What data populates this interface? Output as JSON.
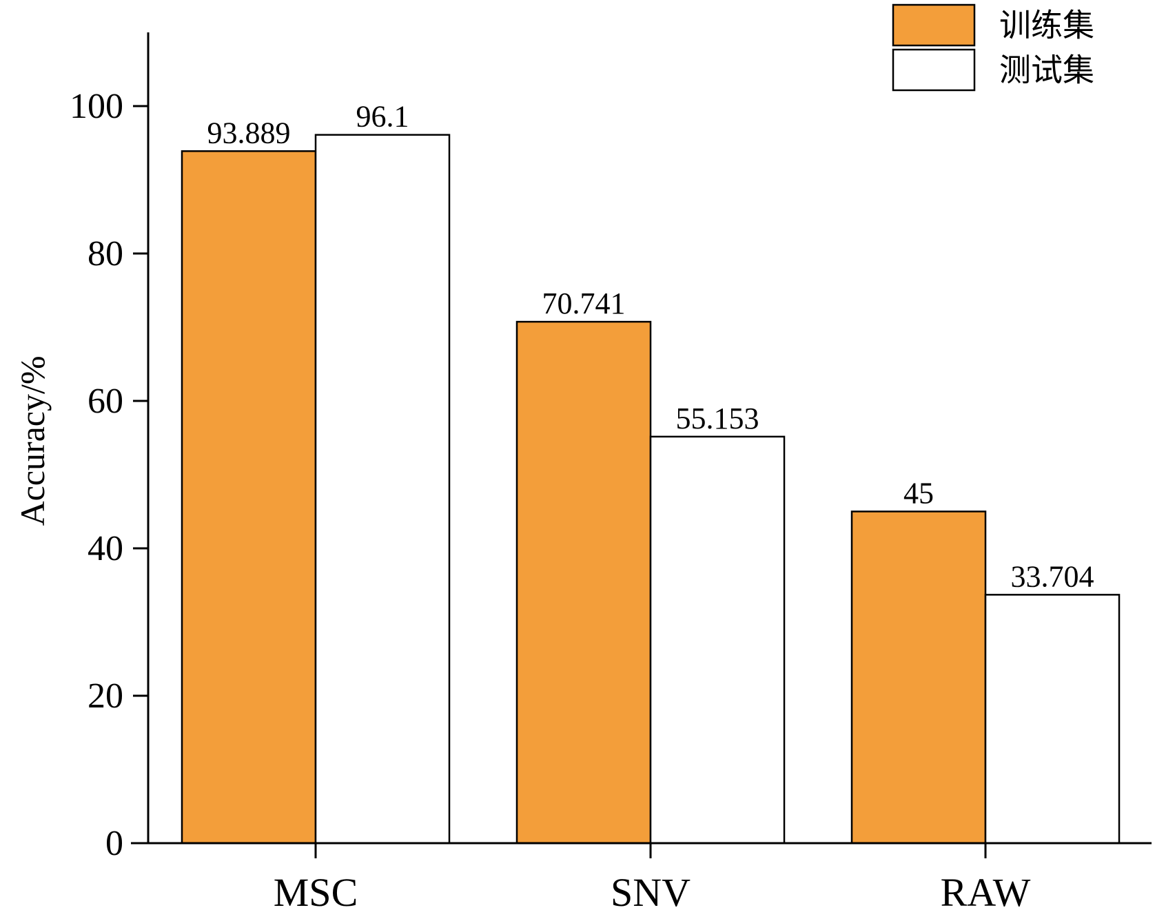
{
  "chart_data": {
    "type": "bar",
    "categories": [
      "MSC",
      "SNV",
      "RAW"
    ],
    "series": [
      {
        "name": "训练集",
        "color": "#F39E3A",
        "values": [
          93.889,
          70.741,
          45
        ]
      },
      {
        "name": "测试集",
        "color": "#FFFFFF",
        "values": [
          96.1,
          55.153,
          33.704
        ]
      }
    ],
    "data_labels": [
      [
        "93.889",
        "70.741",
        "45"
      ],
      [
        "96.1",
        "55.153",
        "33.704"
      ]
    ],
    "ylabel": "Accuracy/%",
    "xlabel": "",
    "ylim": [
      0,
      110
    ],
    "yticks": [
      0,
      20,
      40,
      60,
      80,
      100
    ],
    "grid": false,
    "legend_position": "top-right"
  }
}
